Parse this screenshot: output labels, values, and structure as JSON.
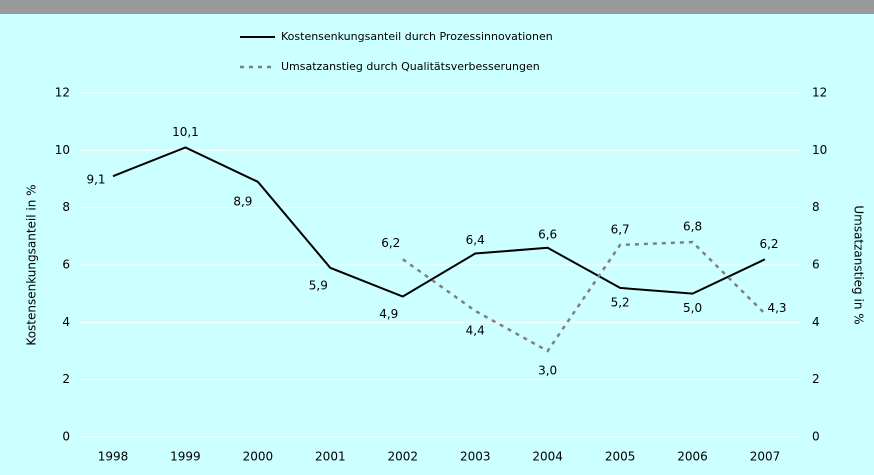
{
  "chart_data": {
    "type": "line",
    "categories": [
      "1998",
      "1999",
      "2000",
      "2001",
      "2002",
      "2003",
      "2004",
      "2005",
      "2006",
      "2007"
    ],
    "series": [
      {
        "name": "Kostensenkungsanteil durch Prozessinnovationen",
        "color": "#000000",
        "values": [
          9.1,
          10.1,
          8.9,
          5.9,
          4.9,
          6.4,
          6.6,
          5.2,
          5.0,
          6.2
        ],
        "value_labels": [
          "9,1",
          "10,1",
          "8,9",
          "5,9",
          "4,9",
          "6,4",
          "6,6",
          "5,2",
          "5,0",
          "6,2"
        ]
      },
      {
        "name": "Umsatzanstieg durch Qualitätsverbesserungen",
        "color": "#808080",
        "axis": "y2",
        "dashed": true,
        "values": [
          null,
          null,
          null,
          null,
          6.2,
          4.4,
          3.0,
          6.7,
          6.8,
          4.3
        ],
        "value_labels": [
          null,
          null,
          null,
          null,
          "6,2",
          "4,4",
          "3,0",
          "6,7",
          "6,8",
          "4,3"
        ]
      }
    ],
    "ylabel": "Kostensenkungsanteil in %",
    "y2label": "Umsatzanstieg in %",
    "ylim": [
      0,
      12
    ],
    "yticks": [
      0,
      2,
      4,
      6,
      8,
      10,
      12
    ],
    "y2lim": [
      0,
      12
    ],
    "y2ticks": [
      0,
      2,
      4,
      6,
      8,
      10,
      12
    ],
    "grid": true
  }
}
